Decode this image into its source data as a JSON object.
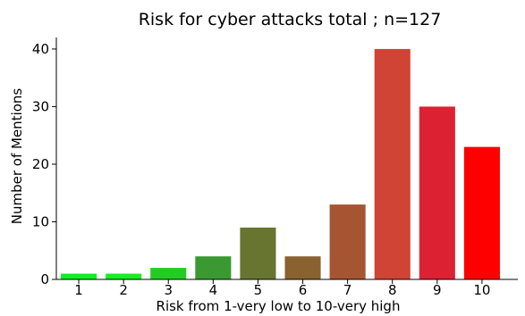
{
  "chart_data": {
    "type": "bar",
    "title": "Risk for cyber attacks total ; n=127",
    "xlabel": "Risk from 1-very low to 10-very high",
    "ylabel": "Number of Mentions",
    "categories": [
      "1",
      "2",
      "3",
      "4",
      "5",
      "6",
      "7",
      "8",
      "9",
      "10"
    ],
    "values": [
      1,
      1,
      2,
      4,
      9,
      4,
      13,
      40,
      30,
      23
    ],
    "colors": [
      "#11ee22",
      "#1aee22",
      "#23cc22",
      "#3a9a31",
      "#687530",
      "#896230",
      "#a65533",
      "#cf4434",
      "#dc2133",
      "#ff0000"
    ],
    "ylim": [
      0,
      42
    ],
    "yticks": [
      0,
      10,
      20,
      30,
      40
    ],
    "grid": false,
    "legend": false
  }
}
